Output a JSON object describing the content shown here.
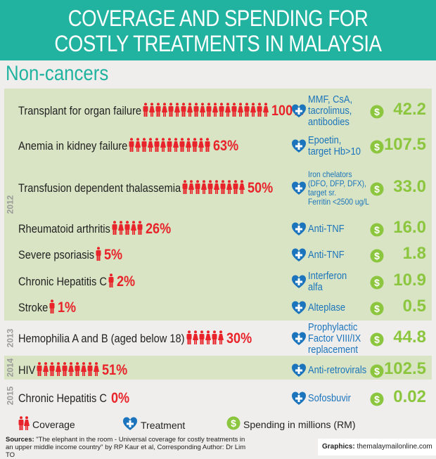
{
  "title": {
    "line1": "COVERAGE AND SPENDING FOR",
    "line2": "COSTLY TREATMENTS IN MALAYSIA"
  },
  "section": "Non-cancers",
  "colors": {
    "header": "#22b3a0",
    "band": "#d8e4c3",
    "coverage": "#e8232a",
    "treatment": "#1b74bc",
    "spending": "#8cc63f"
  },
  "years": [
    "2012",
    "2013",
    "2014",
    "2015"
  ],
  "rows": [
    {
      "year": "2012",
      "condition": "Transplant for organ failure",
      "coverage_pct": 100,
      "coverage": "100%",
      "treatment": [
        "MMF, CsA,",
        "tacrolimus,",
        "antibodies"
      ],
      "spending": "42.2"
    },
    {
      "year": "2012",
      "condition": "Anemia in kidney failure",
      "coverage_pct": 63,
      "coverage": "63%",
      "treatment": [
        "Epoetin,",
        "target Hb>10"
      ],
      "spending": "107.5"
    },
    {
      "year": "2012",
      "condition": "Transfusion dependent thalassemia",
      "coverage_pct": 50,
      "coverage": "50%",
      "treatment": [
        "Iron chelators",
        "(DFO, DFP, DFX),",
        "target sr.",
        "Ferritin <2500 ug/L"
      ],
      "spending": "33.0"
    },
    {
      "year": "2012",
      "condition": "Rheumatoid arthritis",
      "coverage_pct": 26,
      "coverage": "26%",
      "treatment": [
        "Anti-TNF"
      ],
      "spending": "16.0"
    },
    {
      "year": "2012",
      "condition": "Severe psoriasis",
      "coverage_pct": 5,
      "coverage": "5%",
      "treatment": [
        "Anti-TNF"
      ],
      "spending": "1.8"
    },
    {
      "year": "2012",
      "condition": "Chronic Hepatitis C",
      "coverage_pct": 2,
      "coverage": "2%",
      "treatment": [
        "Interferon",
        "alfa"
      ],
      "spending": "10.9"
    },
    {
      "year": "2012",
      "condition": "Stroke",
      "coverage_pct": 1,
      "coverage": "1%",
      "treatment": [
        "Alteplase"
      ],
      "spending": "0.5"
    },
    {
      "year": "2013",
      "condition": "Hemophilia A and B (aged below 18)",
      "coverage_pct": 30,
      "coverage": "30%",
      "treatment": [
        "Prophylactic",
        "Factor VIII/IX",
        "replacement"
      ],
      "spending": "44.8"
    },
    {
      "year": "2014",
      "condition": "HIV",
      "coverage_pct": 51,
      "coverage": "51%",
      "treatment": [
        "Anti-retrovirals"
      ],
      "spending": "102.5"
    },
    {
      "year": "2015",
      "condition": "Chronic Hepatitis C",
      "coverage_pct": 0,
      "coverage": "0%",
      "treatment": [
        "Sofosbuvir"
      ],
      "spending": "0.02"
    }
  ],
  "legend": {
    "coverage": "Coverage",
    "treatment": "Treatment",
    "spending": "Spending in millions (RM)"
  },
  "sources": {
    "label": "Sources:",
    "text": " \"The elephant in the room - Universal coverage for costly treatments in an upper middle income country\" by RP Kaur et al, Corresponding Author: Dr Lim TO"
  },
  "graphics": {
    "label": "Graphics:",
    "text": " themalaymailonline.com"
  }
}
